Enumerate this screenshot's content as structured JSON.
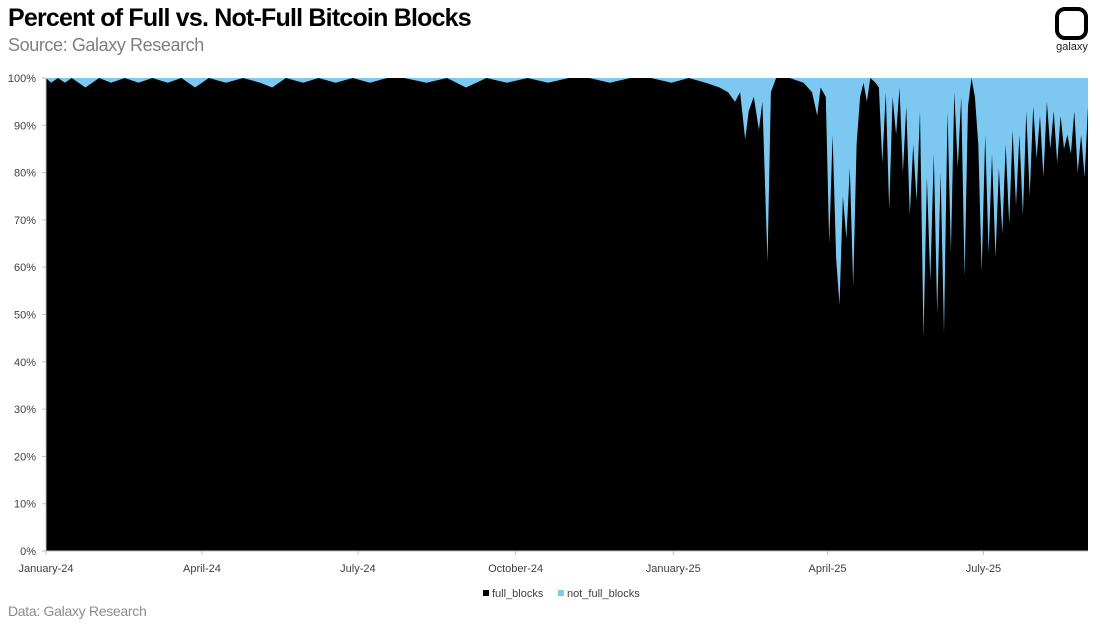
{
  "header": {
    "title": "Percent of Full vs. Not-Full Bitcoin Blocks",
    "subtitle": "Source: Galaxy Research"
  },
  "footer": {
    "note": "Data: Galaxy Research"
  },
  "logo": {
    "icon": "galaxy-logo-icon",
    "text": "galaxy"
  },
  "colors": {
    "full": "#000000",
    "not_full": "#7cc8f0",
    "axis": "#bfbfbf"
  },
  "chart_data": {
    "type": "area",
    "stacked": true,
    "title": "Percent of Full vs. Not-Full Bitcoin Blocks",
    "xlabel": "",
    "ylabel": "",
    "ylim": [
      0,
      1
    ],
    "y_tick_labels": [
      "0%",
      "10%",
      "20%",
      "30%",
      "40%",
      "50%",
      "60%",
      "70%",
      "80%",
      "90%",
      "100%"
    ],
    "x_tick_labels": [
      "January-24",
      "April-24",
      "July-24",
      "October-24",
      "January-25",
      "April-25",
      "July-25"
    ],
    "x_tick_dates": [
      "2024-01-01",
      "2024-04-01",
      "2024-07-01",
      "2024-10-01",
      "2025-01-01",
      "2025-04-01",
      "2025-07-01"
    ],
    "x_range": [
      "2024-01-01",
      "2025-08-31"
    ],
    "legend_position": "bottom-center",
    "series": [
      {
        "name": "full_blocks",
        "color": "#000000"
      },
      {
        "name": "not_full_blocks",
        "color": "#7cc8f0"
      }
    ],
    "full_blocks_points": [
      [
        "2024-01-01",
        1.0
      ],
      [
        "2024-01-04",
        0.99
      ],
      [
        "2024-01-08",
        1.0
      ],
      [
        "2024-01-12",
        0.99
      ],
      [
        "2024-01-16",
        1.0
      ],
      [
        "2024-01-24",
        0.98
      ],
      [
        "2024-02-01",
        1.0
      ],
      [
        "2024-02-08",
        0.99
      ],
      [
        "2024-02-16",
        1.0
      ],
      [
        "2024-02-24",
        0.99
      ],
      [
        "2024-03-03",
        1.0
      ],
      [
        "2024-03-12",
        0.99
      ],
      [
        "2024-03-20",
        1.0
      ],
      [
        "2024-03-28",
        0.98
      ],
      [
        "2024-04-05",
        1.0
      ],
      [
        "2024-04-15",
        0.99
      ],
      [
        "2024-04-25",
        1.0
      ],
      [
        "2024-05-05",
        0.99
      ],
      [
        "2024-05-12",
        0.98
      ],
      [
        "2024-05-20",
        1.0
      ],
      [
        "2024-05-30",
        0.99
      ],
      [
        "2024-06-08",
        1.0
      ],
      [
        "2024-06-18",
        0.99
      ],
      [
        "2024-06-28",
        1.0
      ],
      [
        "2024-07-08",
        0.99
      ],
      [
        "2024-07-18",
        1.0
      ],
      [
        "2024-07-28",
        1.0
      ],
      [
        "2024-08-10",
        0.99
      ],
      [
        "2024-08-22",
        1.0
      ],
      [
        "2024-09-02",
        0.98
      ],
      [
        "2024-09-14",
        1.0
      ],
      [
        "2024-09-26",
        0.99
      ],
      [
        "2024-10-08",
        1.0
      ],
      [
        "2024-10-20",
        0.99
      ],
      [
        "2024-11-01",
        1.0
      ],
      [
        "2024-11-13",
        1.0
      ],
      [
        "2024-11-25",
        0.99
      ],
      [
        "2024-12-07",
        1.0
      ],
      [
        "2024-12-19",
        1.0
      ],
      [
        "2024-12-31",
        0.99
      ],
      [
        "2025-01-10",
        1.0
      ],
      [
        "2025-01-20",
        0.99
      ],
      [
        "2025-01-28",
        0.98
      ],
      [
        "2025-02-02",
        0.97
      ],
      [
        "2025-02-06",
        0.95
      ],
      [
        "2025-02-09",
        0.97
      ],
      [
        "2025-02-12",
        0.87
      ],
      [
        "2025-02-14",
        0.93
      ],
      [
        "2025-02-17",
        0.96
      ],
      [
        "2025-02-20",
        0.89
      ],
      [
        "2025-02-22",
        0.95
      ],
      [
        "2025-02-25",
        0.61
      ],
      [
        "2025-02-27",
        0.97
      ],
      [
        "2025-03-02",
        1.0
      ],
      [
        "2025-03-10",
        1.0
      ],
      [
        "2025-03-18",
        0.99
      ],
      [
        "2025-03-23",
        0.97
      ],
      [
        "2025-03-26",
        0.92
      ],
      [
        "2025-03-28",
        0.98
      ],
      [
        "2025-03-31",
        0.96
      ],
      [
        "2025-04-02",
        0.65
      ],
      [
        "2025-04-04",
        0.88
      ],
      [
        "2025-04-06",
        0.62
      ],
      [
        "2025-04-08",
        0.52
      ],
      [
        "2025-04-10",
        0.75
      ],
      [
        "2025-04-12",
        0.66
      ],
      [
        "2025-04-14",
        0.81
      ],
      [
        "2025-04-16",
        0.56
      ],
      [
        "2025-04-18",
        0.86
      ],
      [
        "2025-04-20",
        0.96
      ],
      [
        "2025-04-22",
        0.99
      ],
      [
        "2025-04-24",
        0.95
      ],
      [
        "2025-04-26",
        1.0
      ],
      [
        "2025-04-29",
        0.99
      ],
      [
        "2025-05-01",
        0.98
      ],
      [
        "2025-05-03",
        0.82
      ],
      [
        "2025-05-05",
        0.97
      ],
      [
        "2025-05-07",
        0.72
      ],
      [
        "2025-05-09",
        0.96
      ],
      [
        "2025-05-11",
        0.88
      ],
      [
        "2025-05-13",
        0.98
      ],
      [
        "2025-05-15",
        0.8
      ],
      [
        "2025-05-17",
        0.94
      ],
      [
        "2025-05-19",
        0.71
      ],
      [
        "2025-05-21",
        0.86
      ],
      [
        "2025-05-23",
        0.74
      ],
      [
        "2025-05-25",
        0.93
      ],
      [
        "2025-05-27",
        0.45
      ],
      [
        "2025-05-29",
        0.79
      ],
      [
        "2025-05-31",
        0.57
      ],
      [
        "2025-06-02",
        0.84
      ],
      [
        "2025-06-04",
        0.5
      ],
      [
        "2025-06-06",
        0.8
      ],
      [
        "2025-06-08",
        0.46
      ],
      [
        "2025-06-10",
        0.93
      ],
      [
        "2025-06-12",
        0.63
      ],
      [
        "2025-06-14",
        0.97
      ],
      [
        "2025-06-16",
        0.81
      ],
      [
        "2025-06-18",
        0.96
      ],
      [
        "2025-06-20",
        0.58
      ],
      [
        "2025-06-22",
        0.94
      ],
      [
        "2025-06-24",
        1.0
      ],
      [
        "2025-06-26",
        0.96
      ],
      [
        "2025-06-28",
        0.86
      ],
      [
        "2025-06-30",
        0.59
      ],
      [
        "2025-07-02",
        0.88
      ],
      [
        "2025-07-04",
        0.63
      ],
      [
        "2025-07-06",
        0.84
      ],
      [
        "2025-07-08",
        0.62
      ],
      [
        "2025-07-10",
        0.81
      ],
      [
        "2025-07-12",
        0.67
      ],
      [
        "2025-07-14",
        0.86
      ],
      [
        "2025-07-16",
        0.69
      ],
      [
        "2025-07-18",
        0.89
      ],
      [
        "2025-07-20",
        0.73
      ],
      [
        "2025-07-22",
        0.88
      ],
      [
        "2025-07-24",
        0.71
      ],
      [
        "2025-07-26",
        0.93
      ],
      [
        "2025-07-28",
        0.75
      ],
      [
        "2025-07-30",
        0.94
      ],
      [
        "2025-08-01",
        0.83
      ],
      [
        "2025-08-03",
        0.92
      ],
      [
        "2025-08-05",
        0.79
      ],
      [
        "2025-08-07",
        0.95
      ],
      [
        "2025-08-09",
        0.85
      ],
      [
        "2025-08-11",
        0.93
      ],
      [
        "2025-08-13",
        0.82
      ],
      [
        "2025-08-15",
        0.92
      ],
      [
        "2025-08-17",
        0.85
      ],
      [
        "2025-08-19",
        0.88
      ],
      [
        "2025-08-21",
        0.84
      ],
      [
        "2025-08-23",
        0.93
      ],
      [
        "2025-08-25",
        0.8
      ],
      [
        "2025-08-27",
        0.88
      ],
      [
        "2025-08-29",
        0.79
      ],
      [
        "2025-08-31",
        0.94
      ]
    ]
  }
}
